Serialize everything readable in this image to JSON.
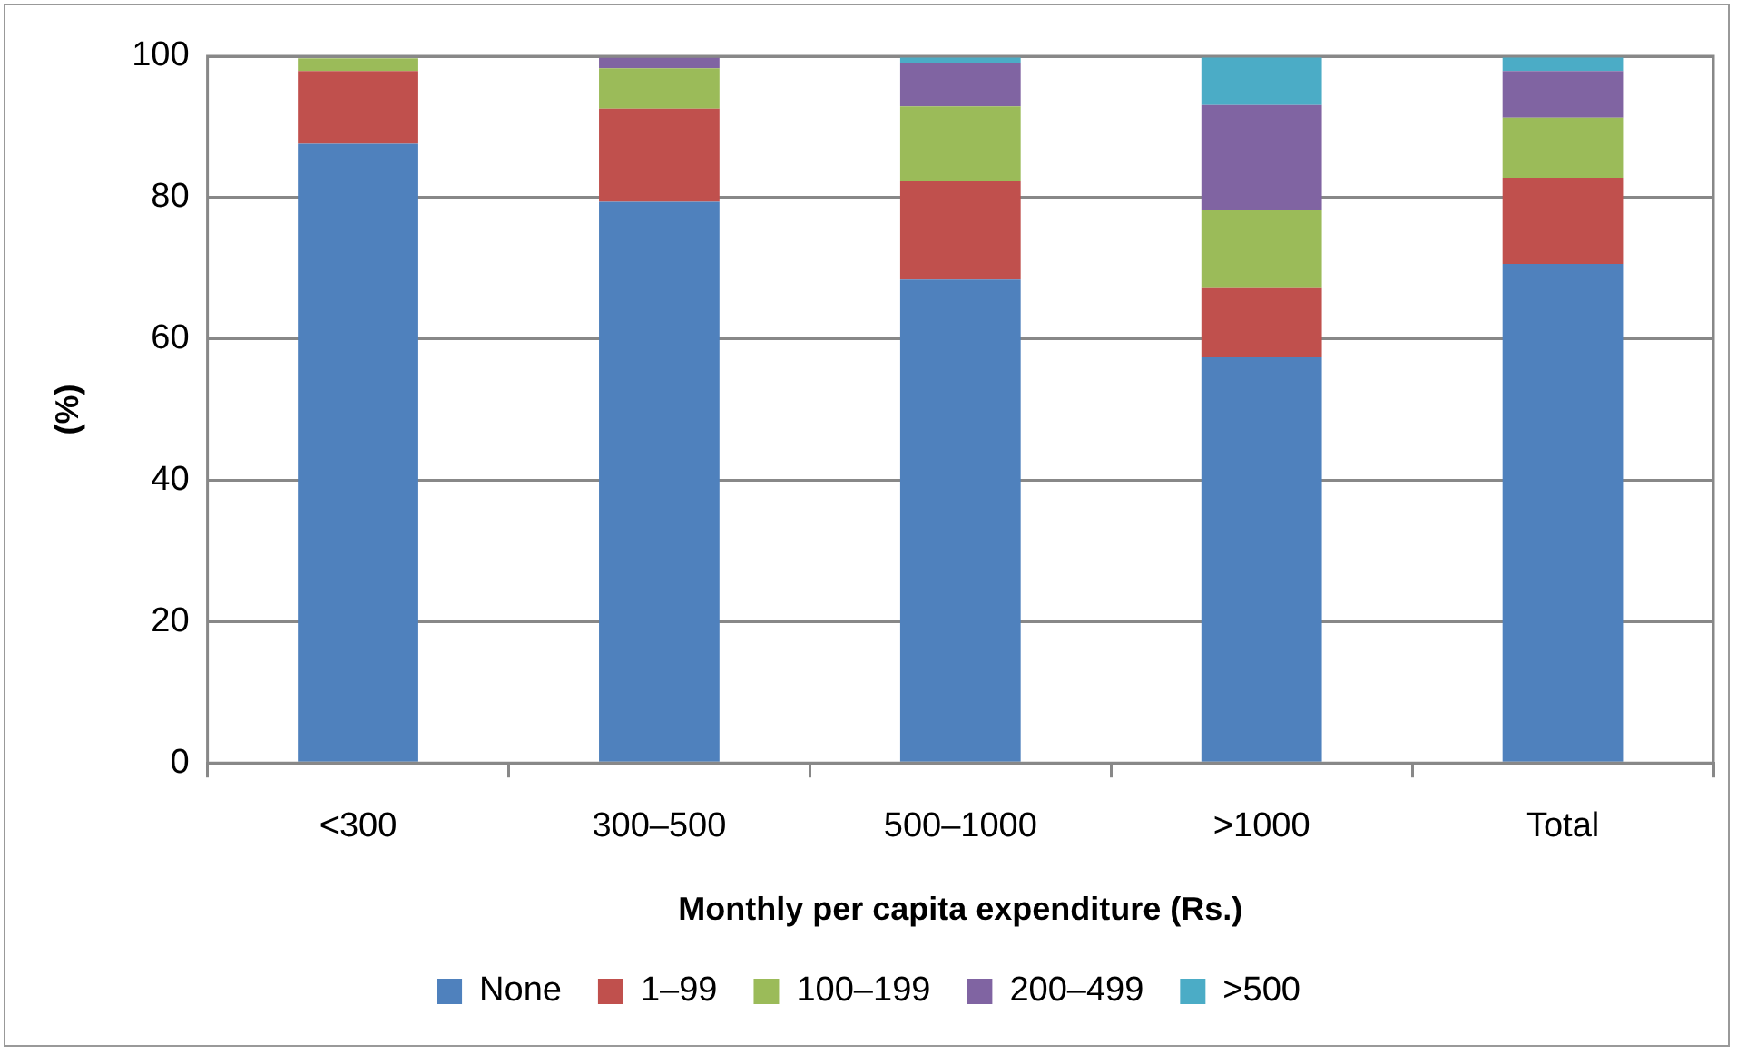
{
  "chart_data": {
    "type": "bar",
    "stacked": true,
    "xlabel": "Monthly per capita expenditure (Rs.)",
    "ylabel": "(%)",
    "categories": [
      "<300",
      "300–500",
      "500–1000",
      ">1000",
      "Total"
    ],
    "series": [
      {
        "name": "None",
        "color": "#4f81bd",
        "values": [
          87.6,
          79.4,
          68.4,
          57.4,
          70.6
        ]
      },
      {
        "name": "1–99",
        "color": "#c0504d",
        "values": [
          10.3,
          13.2,
          14.0,
          9.9,
          12.2
        ]
      },
      {
        "name": "100–199",
        "color": "#9bbb59",
        "values": [
          1.8,
          5.7,
          10.5,
          11.0,
          8.5
        ]
      },
      {
        "name": "200–499",
        "color": "#8064a2",
        "values": [
          null,
          1.5,
          6.2,
          14.8,
          6.6
        ]
      },
      {
        "name": ">500",
        "color": "#4bacc6",
        "values": [
          0,
          null,
          0.9,
          6.9,
          2.1
        ]
      }
    ],
    "ylim": [
      0,
      100
    ],
    "yticks": [
      0,
      20,
      40,
      60,
      80,
      100
    ],
    "grid": "y",
    "legend": "bottom"
  }
}
